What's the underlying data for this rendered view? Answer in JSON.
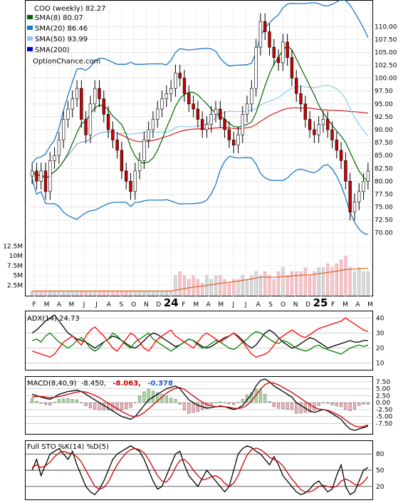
{
  "chart_data": [
    {
      "type": "candlestick",
      "panel": "price",
      "title": "COO (weekly) 82.27",
      "watermark": "OptionChance.com",
      "legend": [
        {
          "name": "SMA(8) 80.07",
          "color": "#006400"
        },
        {
          "name": "SMA(20) 86.46",
          "color": "#1e78c8"
        },
        {
          "name": "SMA(50) 93.99",
          "color": "#8ec8f0"
        },
        {
          "name": "SMA(200)",
          "color": "#0000cc"
        }
      ],
      "y_ticks": [
        70.0,
        72.5,
        75.0,
        77.5,
        80.0,
        82.5,
        85.0,
        87.5,
        90.0,
        92.5,
        95.0,
        97.5,
        100.0,
        102.5,
        105.0,
        107.5,
        110.0
      ],
      "y_tick_labels": [
        "70.00",
        "72.50",
        "75.00",
        "77.50",
        "80.00",
        "82.50",
        "85.00",
        "87.50",
        "90.00",
        "92.50",
        "95.00",
        "97.50",
        "100.00",
        "102.50",
        "105.00",
        "107.50",
        "110.00"
      ],
      "ylim": [
        66.5,
        113.5
      ],
      "x_labels": [
        "F",
        "M",
        "A",
        "M",
        "J",
        "J",
        "A",
        "S",
        "O",
        "N",
        "D",
        "24",
        "F",
        "M",
        "A",
        "M",
        "J",
        "J",
        "A",
        "S",
        "O",
        "N",
        "D",
        "25",
        "F",
        "M",
        "A",
        "M"
      ],
      "close_series": [
        82,
        80,
        82,
        78,
        84,
        85,
        88,
        92,
        94,
        96,
        98,
        92,
        89,
        95,
        98,
        96,
        93,
        90,
        88,
        86,
        82,
        80,
        78,
        82,
        84,
        88,
        90,
        92,
        94,
        96,
        97,
        98,
        101,
        100,
        97,
        95,
        94,
        92,
        90,
        91,
        93,
        94,
        92,
        90,
        88,
        87,
        89,
        93,
        95,
        98,
        106,
        111,
        109,
        106,
        104,
        103,
        107,
        104,
        100,
        97,
        95,
        92,
        90,
        89,
        91,
        92,
        90,
        88,
        86,
        84,
        80,
        74,
        76,
        78,
        80,
        82
      ],
      "price_points": [
        {
          "x": 0,
          "y": 82
        },
        {
          "x": 1,
          "y": 80
        },
        {
          "x": 2,
          "y": 82
        },
        {
          "x": 3,
          "y": 78
        },
        {
          "x": 4,
          "y": 84
        },
        {
          "x": 5,
          "y": 85
        },
        {
          "x": 6,
          "y": 88
        },
        {
          "x": 7,
          "y": 92
        },
        {
          "x": 8,
          "y": 94
        },
        {
          "x": 9,
          "y": 96
        },
        {
          "x": 10,
          "y": 98
        },
        {
          "x": 11,
          "y": 92
        },
        {
          "x": 12,
          "y": 89
        },
        {
          "x": 13,
          "y": 95
        },
        {
          "x": 14,
          "y": 98
        },
        {
          "x": 15,
          "y": 96
        },
        {
          "x": 16,
          "y": 93
        },
        {
          "x": 17,
          "y": 90
        },
        {
          "x": 18,
          "y": 88
        },
        {
          "x": 19,
          "y": 86
        },
        {
          "x": 20,
          "y": 82
        },
        {
          "x": 21,
          "y": 80
        },
        {
          "x": 22,
          "y": 78
        },
        {
          "x": 23,
          "y": 82
        },
        {
          "x": 24,
          "y": 84
        },
        {
          "x": 25,
          "y": 88
        },
        {
          "x": 26,
          "y": 90
        },
        {
          "x": 27,
          "y": 92
        },
        {
          "x": 28,
          "y": 94
        },
        {
          "x": 29,
          "y": 96
        },
        {
          "x": 30,
          "y": 97
        },
        {
          "x": 31,
          "y": 98
        },
        {
          "x": 32,
          "y": 101
        },
        {
          "x": 33,
          "y": 100
        },
        {
          "x": 34,
          "y": 97
        },
        {
          "x": 35,
          "y": 95
        },
        {
          "x": 36,
          "y": 94
        },
        {
          "x": 37,
          "y": 92
        },
        {
          "x": 38,
          "y": 90
        },
        {
          "x": 39,
          "y": 91
        },
        {
          "x": 40,
          "y": 93
        },
        {
          "x": 41,
          "y": 94
        },
        {
          "x": 42,
          "y": 92
        },
        {
          "x": 43,
          "y": 90
        },
        {
          "x": 44,
          "y": 88
        },
        {
          "x": 45,
          "y": 87
        },
        {
          "x": 46,
          "y": 89
        },
        {
          "x": 47,
          "y": 93
        },
        {
          "x": 48,
          "y": 95
        },
        {
          "x": 49,
          "y": 98
        },
        {
          "x": 50,
          "y": 106
        },
        {
          "x": 51,
          "y": 111
        },
        {
          "x": 52,
          "y": 109
        },
        {
          "x": 53,
          "y": 106
        },
        {
          "x": 54,
          "y": 104
        },
        {
          "x": 55,
          "y": 103
        },
        {
          "x": 56,
          "y": 107
        },
        {
          "x": 57,
          "y": 104
        },
        {
          "x": 58,
          "y": 100
        },
        {
          "x": 59,
          "y": 97
        },
        {
          "x": 60,
          "y": 95
        },
        {
          "x": 61,
          "y": 92
        },
        {
          "x": 62,
          "y": 90
        },
        {
          "x": 63,
          "y": 89
        },
        {
          "x": 64,
          "y": 91
        },
        {
          "x": 65,
          "y": 92
        },
        {
          "x": 66,
          "y": 90
        },
        {
          "x": 67,
          "y": 88
        },
        {
          "x": 68,
          "y": 86
        },
        {
          "x": 69,
          "y": 84
        },
        {
          "x": 70,
          "y": 80
        },
        {
          "x": 71,
          "y": 74
        },
        {
          "x": 72,
          "y": 76
        },
        {
          "x": 73,
          "y": 78
        },
        {
          "x": 74,
          "y": 80
        },
        {
          "x": 75,
          "y": 82
        }
      ],
      "volume_ticks": [
        "2.5M",
        "5M",
        "7.5M",
        "10M",
        "12.5M"
      ],
      "volume_tick_values": [
        2.5,
        5,
        7.5,
        10,
        12.5
      ],
      "volume_series": [
        1,
        1,
        1,
        1,
        1,
        1,
        1,
        1,
        1,
        1,
        1,
        1,
        1,
        1,
        1,
        1,
        1,
        1,
        1,
        1,
        1,
        1,
        1,
        1,
        1,
        1,
        1,
        1,
        1,
        1,
        1,
        1,
        5,
        6,
        5,
        4,
        5,
        4,
        3,
        5,
        4,
        5,
        5,
        4,
        3,
        4,
        4,
        5,
        4,
        5,
        6,
        5,
        6,
        5,
        4,
        6,
        7,
        5,
        6,
        6,
        6,
        7,
        5,
        6,
        7,
        7,
        8,
        7,
        8,
        9,
        10,
        7,
        6,
        7,
        6,
        6
      ]
    },
    {
      "type": "line",
      "panel": "adx",
      "title": "ADX(14) 24.73",
      "y_ticks": [
        10,
        20,
        30,
        40
      ],
      "y_tick_labels": [
        "10",
        "20",
        "30",
        "40"
      ],
      "ylim": [
        7,
        43
      ],
      "series": [
        {
          "name": "ADX",
          "color": "#000000",
          "values": [
            30,
            32,
            35,
            38,
            40,
            42,
            38,
            34,
            30,
            28,
            26,
            25,
            24,
            22,
            20,
            22,
            24,
            26,
            28,
            27,
            25,
            23,
            21,
            20,
            22,
            25,
            28,
            30,
            29,
            27,
            25,
            23,
            21,
            22,
            24,
            26,
            25,
            23,
            21,
            20,
            21,
            23,
            25,
            27,
            28,
            30,
            28,
            25,
            22,
            20,
            22,
            26,
            30,
            32,
            30,
            27,
            24,
            22,
            20,
            21,
            23,
            25,
            27,
            26,
            24,
            22,
            20,
            21,
            22,
            23,
            24,
            25,
            24,
            24,
            25,
            25
          ]
        },
        {
          "name": "+DI",
          "color": "#008000",
          "values": [
            25,
            26,
            24,
            28,
            30,
            27,
            24,
            22,
            20,
            22,
            25,
            27,
            24,
            20,
            18,
            20,
            24,
            26,
            30,
            28,
            25,
            22,
            20,
            24,
            26,
            28,
            30,
            26,
            24,
            22,
            20,
            18,
            20,
            22,
            24,
            26,
            25,
            22,
            20,
            21,
            23,
            25,
            24,
            22,
            20,
            19,
            21,
            24,
            26,
            29,
            31,
            30,
            28,
            26,
            24,
            23,
            25,
            24,
            22,
            20,
            19,
            18,
            19,
            21,
            22,
            20,
            19,
            18,
            17,
            16,
            18,
            20,
            21,
            22,
            21,
            22
          ]
        },
        {
          "name": "-DI",
          "color": "#ff0000",
          "values": [
            18,
            17,
            16,
            15,
            14,
            16,
            20,
            24,
            26,
            28,
            25,
            22,
            28,
            32,
            34,
            31,
            28,
            24,
            20,
            18,
            22,
            26,
            30,
            28,
            24,
            20,
            18,
            22,
            26,
            28,
            30,
            32,
            28,
            26,
            24,
            22,
            20,
            24,
            28,
            30,
            28,
            26,
            24,
            26,
            28,
            30,
            27,
            24,
            20,
            16,
            14,
            15,
            16,
            18,
            22,
            26,
            28,
            30,
            32,
            30,
            28,
            27,
            29,
            31,
            33,
            34,
            35,
            36,
            37,
            38,
            40,
            38,
            36,
            34,
            32,
            31
          ]
        }
      ]
    },
    {
      "type": "line",
      "panel": "macd",
      "title": "MACD(8,40,9)",
      "values_text": [
        "-8.450,",
        "-8.063,",
        "-0.378"
      ],
      "y_ticks": [
        -7.5,
        -5.0,
        -2.5,
        0.0,
        2.5,
        5.0,
        7.5
      ],
      "y_tick_labels": [
        "-7.50",
        "-5.00",
        "-2.50",
        "0.00",
        "2.50",
        "5.00",
        "7.50"
      ],
      "ylim": [
        -10.5,
        8.5
      ],
      "series": [
        {
          "name": "MACD",
          "color": "#000000",
          "values": [
            3,
            2.5,
            2,
            1.5,
            1.2,
            2,
            3,
            3.5,
            4,
            4.2,
            4.5,
            4,
            3,
            2,
            1,
            0,
            -1,
            -2,
            -3,
            -4,
            -5,
            -5.5,
            -6,
            -5,
            -3,
            -1,
            1,
            2,
            3,
            4,
            5,
            5.5,
            6,
            5,
            3,
            1,
            0,
            -1,
            -1.5,
            -2,
            -1.8,
            -1.5,
            -1.2,
            -1.5,
            -2,
            -2.5,
            -2,
            -1,
            1,
            3,
            6,
            8,
            8.5,
            7.5,
            6,
            5,
            4,
            3,
            2,
            0,
            -1,
            -2,
            -3,
            -3.5,
            -3,
            -2.5,
            -3,
            -4,
            -5,
            -6,
            -8,
            -9.5,
            -10,
            -9.5,
            -9,
            -8.45
          ]
        },
        {
          "name": "Signal",
          "color": "#cc0000",
          "values": [
            2,
            2.2,
            2.2,
            2,
            1.8,
            1.9,
            2.2,
            2.6,
            3,
            3.4,
            3.8,
            4,
            3.8,
            3.3,
            2.6,
            1.8,
            0.8,
            -0.2,
            -1.2,
            -2.2,
            -3.2,
            -4,
            -4.8,
            -5,
            -4.6,
            -3.6,
            -2.2,
            -0.8,
            0.6,
            2,
            3.4,
            4.4,
            5.2,
            5.4,
            4.8,
            3.6,
            2.4,
            1.2,
            0.2,
            -0.6,
            -1.2,
            -1.4,
            -1.4,
            -1.5,
            -1.7,
            -2,
            -2.1,
            -1.8,
            -0.9,
            0.6,
            2.7,
            4.9,
            6.5,
            7.2,
            7,
            6.4,
            5.5,
            4.6,
            3.7,
            2.6,
            1.5,
            0.4,
            -0.7,
            -1.7,
            -2.3,
            -2.5,
            -2.8,
            -3.4,
            -4.2,
            -5,
            -6.3,
            -7.5,
            -8.4,
            -8.8,
            -8.6,
            -8.06
          ]
        }
      ]
    },
    {
      "type": "line",
      "panel": "stochastic",
      "title": "Full STO %K(14) %D(5)",
      "y_ticks": [
        20,
        50,
        80
      ],
      "y_tick_labels": [
        "20",
        "50",
        "80"
      ],
      "ylim": [
        0,
        100
      ],
      "series": [
        {
          "name": "%K",
          "color": "#000000",
          "values": [
            50,
            70,
            40,
            60,
            80,
            85,
            90,
            80,
            70,
            85,
            60,
            40,
            20,
            10,
            5,
            15,
            30,
            50,
            70,
            80,
            85,
            90,
            95,
            90,
            85,
            70,
            50,
            30,
            15,
            20,
            40,
            60,
            80,
            85,
            60,
            40,
            30,
            20,
            35,
            50,
            40,
            30,
            20,
            10,
            20,
            50,
            80,
            90,
            95,
            92,
            85,
            80,
            70,
            60,
            75,
            60,
            40,
            30,
            20,
            10,
            5,
            8,
            15,
            25,
            30,
            20,
            10,
            15,
            40,
            60,
            20,
            5,
            10,
            30,
            50,
            55
          ]
        },
        {
          "name": "%D",
          "color": "#cc0000",
          "values": [
            55,
            60,
            55,
            58,
            65,
            75,
            82,
            85,
            82,
            80,
            75,
            65,
            50,
            35,
            20,
            15,
            18,
            28,
            45,
            60,
            72,
            82,
            88,
            90,
            88,
            82,
            70,
            55,
            40,
            30,
            28,
            38,
            55,
            68,
            70,
            62,
            50,
            40,
            32,
            34,
            38,
            40,
            35,
            26,
            20,
            26,
            40,
            60,
            78,
            88,
            91,
            88,
            82,
            74,
            70,
            66,
            58,
            46,
            34,
            24,
            14,
            10,
            10,
            14,
            20,
            22,
            20,
            18,
            20,
            30,
            34,
            30,
            24,
            22,
            28,
            38
          ]
        }
      ]
    }
  ]
}
